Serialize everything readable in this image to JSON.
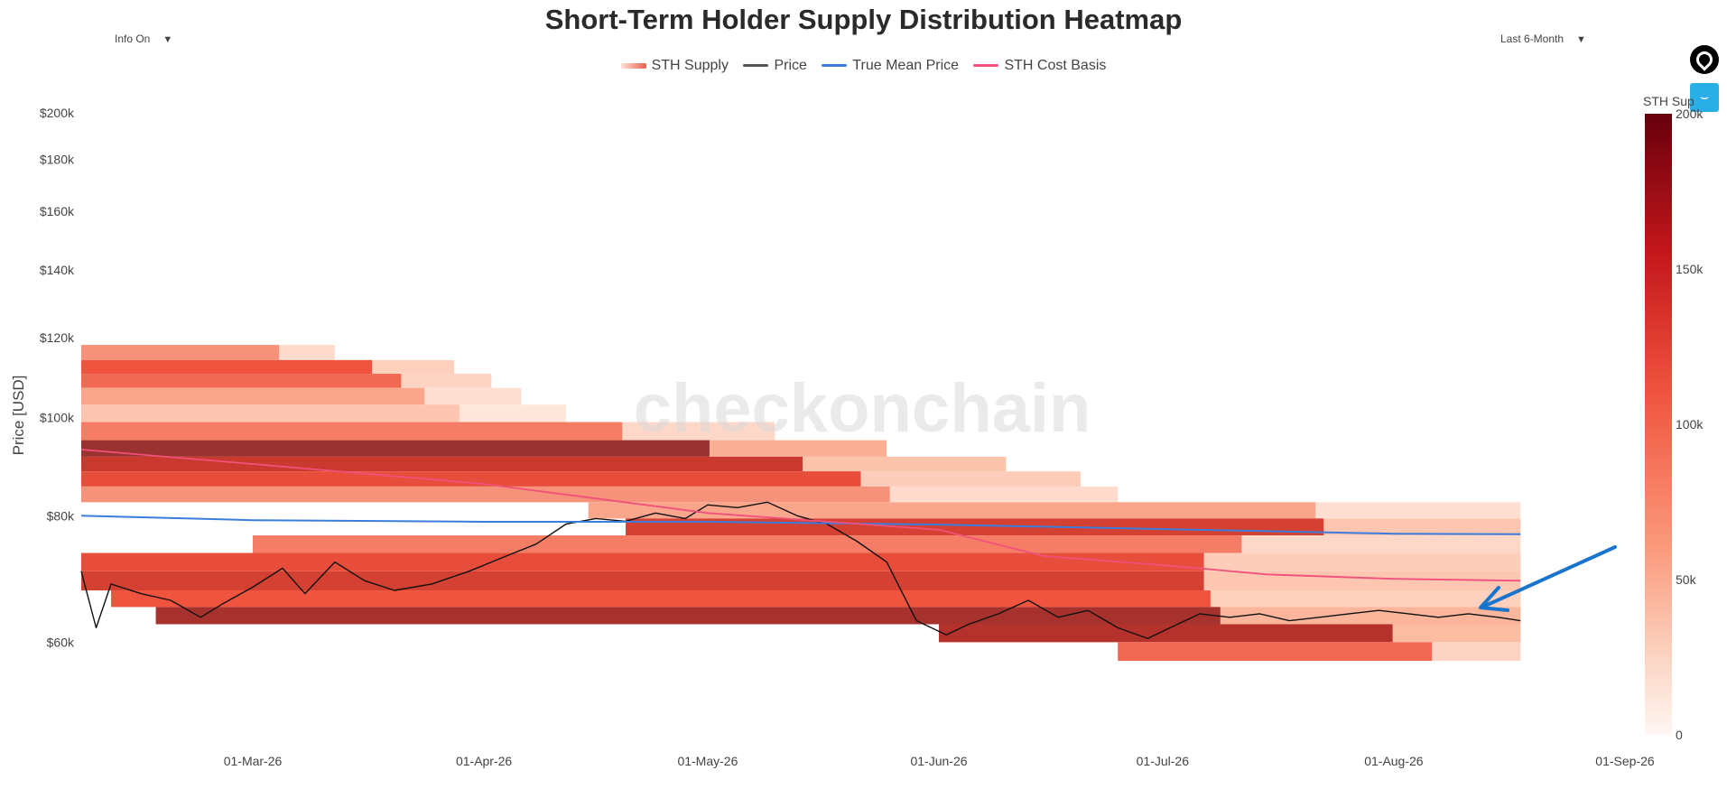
{
  "title": "Short-Term Holder Supply Distribution Heatmap",
  "controls": {
    "info_toggle": "Info On",
    "range_select": "Last 6-Month"
  },
  "legend": {
    "items": [
      {
        "label": "STH Supply",
        "color": "#e9604f",
        "type": "heatmap"
      },
      {
        "label": "Price",
        "color": "#555555",
        "type": "line"
      },
      {
        "label": "True Mean Price",
        "color": "#3b7ddd",
        "type": "line"
      },
      {
        "label": "STH Cost Basis",
        "color": "#f0507a",
        "type": "line"
      }
    ]
  },
  "watermark": "checkonchain",
  "colorbar": {
    "title": "STH Supply",
    "ticks": [
      "0",
      "50k",
      "100k",
      "150k",
      "200k"
    ],
    "tick_values": [
      0,
      50000,
      100000,
      150000,
      200000
    ]
  },
  "annotation": {
    "type": "arrow",
    "color": "#1874cd",
    "points_to": "latest price"
  },
  "chart_data": {
    "type": "heatmap",
    "title": "Short-Term Holder Supply Distribution Heatmap",
    "xlabel": "",
    "ylabel": "Price [USD]",
    "y_scale": "log",
    "ylim": [
      48000,
      215000
    ],
    "xlim": [
      "2026-02-06",
      "2026-09-01"
    ],
    "x_tick_labels": [
      "01-Mar-26",
      "01-Apr-26",
      "01-May-26",
      "01-Jun-26",
      "01-Jul-26",
      "01-Aug-26",
      "01-Sep-26"
    ],
    "x_tick_dates": [
      "2026-03-01",
      "2026-04-01",
      "2026-05-01",
      "2026-06-01",
      "2026-07-01",
      "2026-08-01",
      "2026-09-01"
    ],
    "y_tick_labels": [
      "$60k",
      "$80k",
      "$100k",
      "$120k",
      "$140k",
      "$160k",
      "$180k",
      "$200k"
    ],
    "y_tick_values": [
      60000,
      80000,
      100000,
      120000,
      140000,
      160000,
      180000,
      200000
    ],
    "series": [
      {
        "name": "Price",
        "x": [
          "2026-02-06",
          "2026-02-08",
          "2026-02-10",
          "2026-02-14",
          "2026-02-18",
          "2026-02-22",
          "2026-02-25",
          "2026-03-01",
          "2026-03-05",
          "2026-03-08",
          "2026-03-12",
          "2026-03-16",
          "2026-03-20",
          "2026-03-25",
          "2026-03-30",
          "2026-04-04",
          "2026-04-08",
          "2026-04-12",
          "2026-04-16",
          "2026-04-20",
          "2026-04-24",
          "2026-04-28",
          "2026-05-01",
          "2026-05-05",
          "2026-05-09",
          "2026-05-13",
          "2026-05-17",
          "2026-05-21",
          "2026-05-25",
          "2026-05-29",
          "2026-06-02",
          "2026-06-05",
          "2026-06-09",
          "2026-06-13",
          "2026-06-17",
          "2026-06-21",
          "2026-06-25",
          "2026-06-29",
          "2026-07-02",
          "2026-07-06",
          "2026-07-10",
          "2026-07-14",
          "2026-07-18",
          "2026-07-22",
          "2026-07-26",
          "2026-07-30",
          "2026-08-03",
          "2026-08-07",
          "2026-08-11",
          "2026-08-15",
          "2026-08-18"
        ],
        "y": [
          70500,
          62000,
          68500,
          67000,
          66000,
          63500,
          65500,
          68000,
          71000,
          67000,
          72000,
          69000,
          67500,
          68500,
          70500,
          73000,
          75000,
          78500,
          79500,
          79000,
          80500,
          79500,
          82000,
          81500,
          82500,
          80000,
          78500,
          75500,
          72000,
          63000,
          61000,
          62500,
          64000,
          66000,
          63500,
          64500,
          62000,
          60500,
          62000,
          64000,
          63500,
          64000,
          63000,
          63500,
          64000,
          64500,
          64000,
          63500,
          64000,
          63500,
          63000
        ]
      },
      {
        "name": "True Mean Price",
        "x": [
          "2026-02-06",
          "2026-03-01",
          "2026-04-01",
          "2026-05-01",
          "2026-06-01",
          "2026-07-01",
          "2026-08-01",
          "2026-08-18"
        ],
        "y": [
          80000,
          79200,
          78900,
          78900,
          78400,
          77600,
          76800,
          76700
        ]
      },
      {
        "name": "STH Cost Basis",
        "x": [
          "2026-02-06",
          "2026-03-01",
          "2026-04-01",
          "2026-05-01",
          "2026-06-01",
          "2026-06-15",
          "2026-07-01",
          "2026-07-15",
          "2026-08-01",
          "2026-08-18"
        ],
        "y": [
          93000,
          90000,
          86000,
          80500,
          77500,
          73000,
          71500,
          70000,
          69300,
          69000
        ]
      }
    ],
    "heatmap": {
      "bands": [
        {
          "y0": 114000,
          "y1": 118000,
          "x0": "2026-02-06",
          "x1": "2026-03-12",
          "intensity": 0.4
        },
        {
          "y0": 110500,
          "y1": 114000,
          "x0": "2026-02-06",
          "x1": "2026-03-28",
          "intensity": 0.55
        },
        {
          "y0": 107000,
          "y1": 110500,
          "x0": "2026-02-06",
          "x1": "2026-04-02",
          "intensity": 0.5
        },
        {
          "y0": 103000,
          "y1": 107000,
          "x0": "2026-02-06",
          "x1": "2026-04-06",
          "intensity": 0.35
        },
        {
          "y0": 99000,
          "y1": 103000,
          "x0": "2026-02-06",
          "x1": "2026-04-12",
          "intensity": 0.25
        },
        {
          "y0": 95000,
          "y1": 99000,
          "x0": "2026-02-06",
          "x1": "2026-05-10",
          "intensity": 0.45
        },
        {
          "y0": 91500,
          "y1": 95000,
          "x0": "2026-02-06",
          "x1": "2026-05-25",
          "intensity": 0.95
        },
        {
          "y0": 88500,
          "y1": 91500,
          "x0": "2026-02-06",
          "x1": "2026-06-10",
          "intensity": 0.75
        },
        {
          "y0": 85500,
          "y1": 88500,
          "x0": "2026-02-06",
          "x1": "2026-06-20",
          "intensity": 0.6
        },
        {
          "y0": 82500,
          "y1": 85500,
          "x0": "2026-02-06",
          "x1": "2026-06-25",
          "intensity": 0.4
        },
        {
          "y0": 79500,
          "y1": 82500,
          "x0": "2026-04-15",
          "x1": "2026-08-18",
          "intensity": 0.35
        },
        {
          "y0": 76500,
          "y1": 79500,
          "x0": "2026-04-20",
          "x1": "2026-08-18",
          "intensity": 0.7
        },
        {
          "y0": 73500,
          "y1": 76500,
          "x0": "2026-03-01",
          "x1": "2026-08-18",
          "intensity": 0.45
        },
        {
          "y0": 70500,
          "y1": 73500,
          "x0": "2026-02-06",
          "x1": "2026-08-18",
          "intensity": 0.6
        },
        {
          "y0": 67500,
          "y1": 70500,
          "x0": "2026-02-06",
          "x1": "2026-08-18",
          "intensity": 0.7
        },
        {
          "y0": 65000,
          "y1": 67500,
          "x0": "2026-02-10",
          "x1": "2026-08-18",
          "intensity": 0.55
        },
        {
          "y0": 62500,
          "y1": 65000,
          "x0": "2026-02-16",
          "x1": "2026-08-18",
          "intensity": 0.9
        },
        {
          "y0": 60000,
          "y1": 62500,
          "x0": "2026-06-01",
          "x1": "2026-08-18",
          "intensity": 0.85
        },
        {
          "y0": 57500,
          "y1": 60000,
          "x0": "2026-06-25",
          "x1": "2026-08-18",
          "intensity": 0.5
        }
      ]
    }
  }
}
